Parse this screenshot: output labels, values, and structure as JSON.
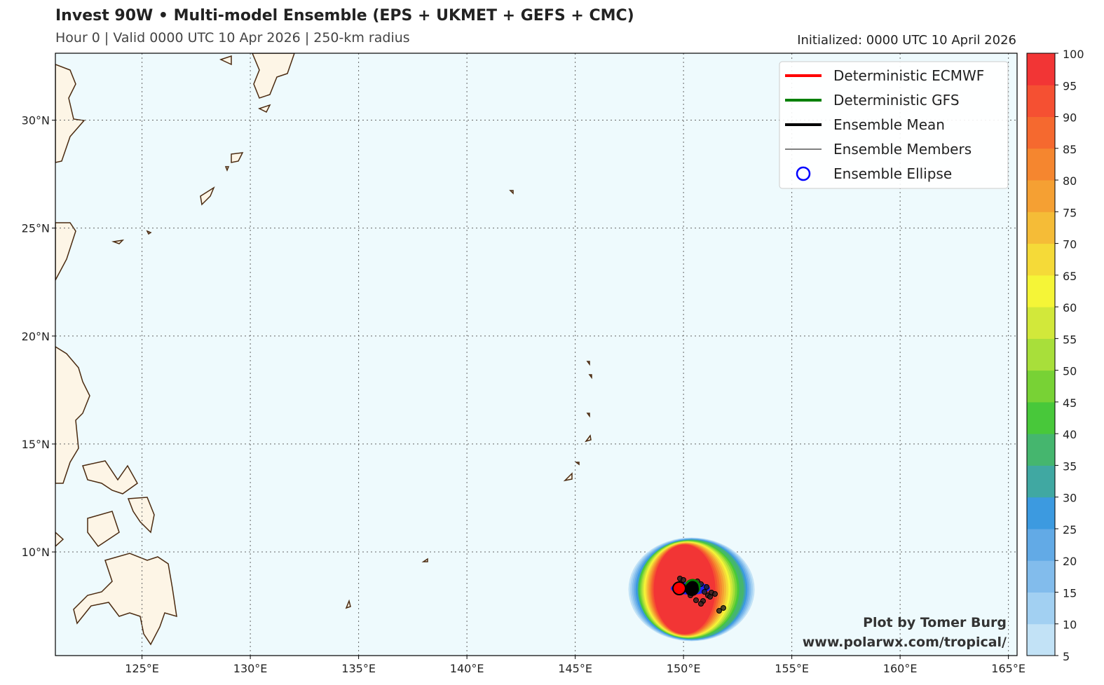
{
  "header": {
    "title": "Invest 90W • Multi-model Ensemble (EPS + UKMET + GEFS + CMC)",
    "subtitle": "Hour 0 | Valid 0000 UTC 10 Apr 2026 | 250-km radius",
    "initialized": "Initialized: 0000 UTC 10 April 2026"
  },
  "map": {
    "lon_range": [
      121,
      165.4
    ],
    "lat_range": [
      5.2,
      33.1
    ],
    "lon_labels": [
      "125°E",
      "130°E",
      "135°E",
      "140°E",
      "145°E",
      "150°E",
      "155°E",
      "160°E",
      "165°E"
    ],
    "lat_labels": [
      "10°N",
      "15°N",
      "20°N",
      "25°N",
      "30°N"
    ],
    "ocean_color": "#eefafd",
    "land_color": "#fdf5e6"
  },
  "legend": {
    "items": [
      {
        "label": "Deterministic ECMWF",
        "color": "#ff0000",
        "kind": "thick"
      },
      {
        "label": "Deterministic GFS",
        "color": "#008000",
        "kind": "thick"
      },
      {
        "label": "Ensemble Mean",
        "color": "#000000",
        "kind": "thick"
      },
      {
        "label": "Ensemble Members",
        "color": "#000000",
        "kind": "thin"
      },
      {
        "label": "Ensemble Ellipse",
        "color": "#0000ff",
        "kind": "circle"
      }
    ]
  },
  "storm": {
    "center_lon": 150.5,
    "center_lat": 8.3,
    "ecmwf_lon": 150.0,
    "ecmwf_lat": 8.3
  },
  "credit": {
    "line1": "Plot by Tomer Burg",
    "line2": "www.polarwx.com/tropical/"
  },
  "colorbar": {
    "ticks": [
      "5",
      "10",
      "15",
      "20",
      "25",
      "30",
      "35",
      "40",
      "45",
      "50",
      "55",
      "60",
      "65",
      "70",
      "75",
      "80",
      "85",
      "90",
      "95",
      "100"
    ],
    "colors": [
      "#c2e2f6",
      "#a2d0f2",
      "#82bcec",
      "#62aae6",
      "#3c9ae0",
      "#40a8a2",
      "#45b66e",
      "#48c83a",
      "#78d235",
      "#a8df3a",
      "#d2e83a",
      "#f5f537",
      "#f5da38",
      "#f5bc37",
      "#f5a033",
      "#f5862f",
      "#f5692f",
      "#f55032",
      "#f23535"
    ]
  }
}
